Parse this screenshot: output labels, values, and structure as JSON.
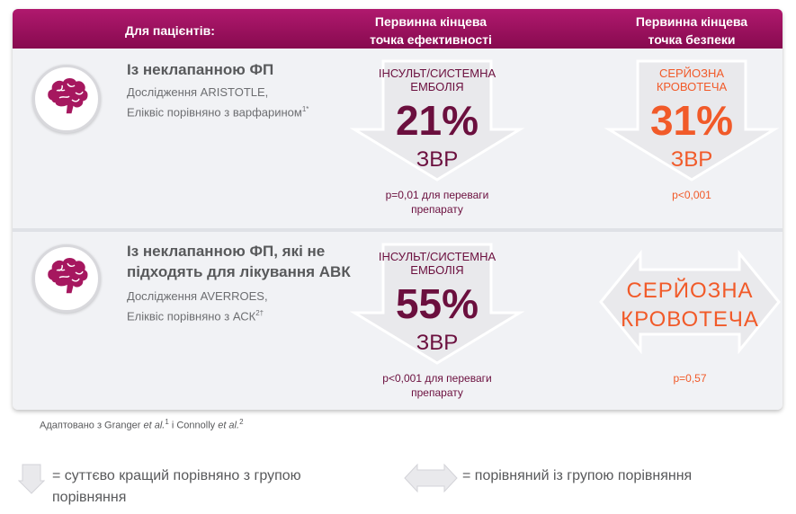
{
  "header": {
    "patients_label": "Для пацієнтів:",
    "efficacy_line1": "Первинна кінцева",
    "efficacy_line2": "точка ефективності",
    "safety_line1": "Первинна кінцева",
    "safety_line2": "точка безпеки"
  },
  "rows": [
    {
      "icon": "brain-icon",
      "title_line1": "Із неклапанною ФП",
      "title_line2": "",
      "study": "Дослідження ARISTOTLE,",
      "comparison": "Еліквіс порівняно з варфарином",
      "comparison_sup": "1*",
      "efficacy": {
        "label_line1": "ІНСУЛЬТ/СИСТЕМНА",
        "label_line2": "ЕМБОЛІЯ",
        "value": "21%",
        "unit": "ЗВР",
        "p_line1": "p=0,01 для переваги",
        "p_line2": "препарату"
      },
      "safety": {
        "label_line1": "СЕРЙОЗНА",
        "label_line2": "КРОВОТЕЧА",
        "value": "31%",
        "unit": "ЗВР",
        "p_line1": "p<0,001"
      }
    },
    {
      "icon": "brain-icon",
      "title_line1": "Із неклапанною ФП, які не",
      "title_line2": "підходять для лікування АВК",
      "study": "Дослідження AVERROES,",
      "comparison": "Еліквіс порівняно з АСК",
      "comparison_sup": "2†",
      "efficacy": {
        "label_line1": "ІНСУЛЬТ/СИСТЕМНА",
        "label_line2": "ЕМБОЛІЯ",
        "value": "55%",
        "unit": "ЗВР",
        "p_line1": "p<0,001 для переваги",
        "p_line2": "препарату"
      },
      "safety": {
        "label_line1": "СЕРЙОЗНА",
        "label_line2": "КРОВОТЕЧА",
        "p_line1": "p=0,57"
      }
    }
  ],
  "footnote": {
    "prefix": "Адаптовано з Granger ",
    "etal1": "et al.",
    "sup1": "1",
    "middle": " і Connolly ",
    "etal2": "et al.",
    "sup2": "2"
  },
  "legend": {
    "down_line1": "= суттєво кращий порівняно з групою",
    "down_line2": "порівняння",
    "double_text": "= порівняний із групою порівняння"
  },
  "colors": {
    "header": "#9c1160",
    "efficacy_text": "#6b0f3e",
    "safety_text": "#f15a29",
    "arrow_fill": "#e9e9ec"
  }
}
